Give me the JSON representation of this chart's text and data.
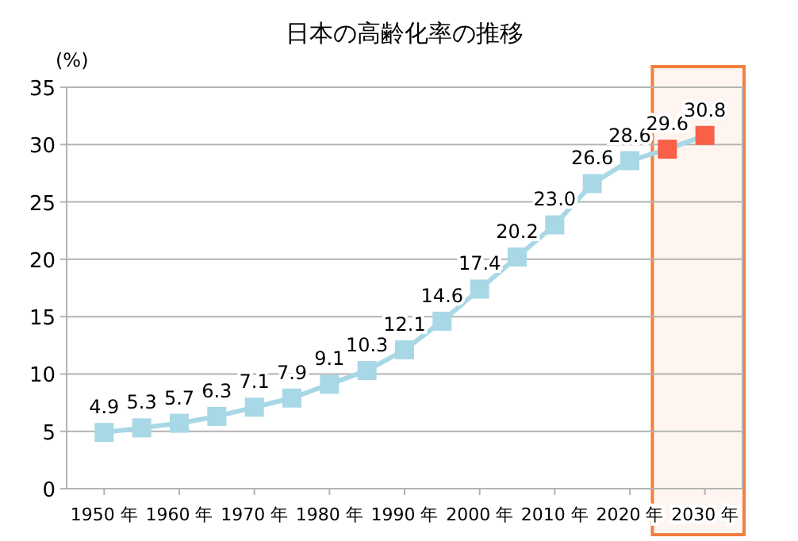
{
  "chart_data": {
    "type": "line",
    "title": "日本の高齢化率の推移",
    "ylabel": "(%)",
    "x": [
      1950,
      1955,
      1960,
      1965,
      1970,
      1975,
      1980,
      1985,
      1990,
      1995,
      2000,
      2005,
      2010,
      2015,
      2020,
      2025,
      2030
    ],
    "series": [
      {
        "color": "#a8d8e6",
        "values": [
          4.9,
          5.3,
          5.7,
          6.3,
          7.1,
          7.9,
          9.1,
          10.3,
          12.1,
          14.6,
          17.4,
          20.2,
          23.0,
          26.6,
          28.6,
          29.6,
          30.8
        ],
        "colors": [
          "#a8d8e6",
          "#a8d8e6",
          "#a8d8e6",
          "#a8d8e6",
          "#a8d8e6",
          "#a8d8e6",
          "#a8d8e6",
          "#a8d8e6",
          "#a8d8e6",
          "#a8d8e6",
          "#a8d8e6",
          "#a8d8e6",
          "#a8d8e6",
          "#a8d8e6",
          "#a8d8e6",
          "#f96048",
          "#f96048"
        ],
        "value_labels": [
          "4.9",
          "5.3",
          "5.7",
          "6.3",
          "7.1",
          "7.9",
          "9.1",
          "10.3",
          "12.1",
          "14.6",
          "17.4",
          "20.2",
          "23.0",
          "26.6",
          "28.6",
          "29.6",
          "30.8"
        ]
      }
    ],
    "xlim": [
      1945,
      2035
    ],
    "xticks": [
      {
        "value": 1950,
        "label": "1950 年"
      },
      {
        "value": 1960,
        "label": "1960 年"
      },
      {
        "value": 1970,
        "label": "1970 年"
      },
      {
        "value": 1980,
        "label": "1980 年"
      },
      {
        "value": 1990,
        "label": "1990 年"
      },
      {
        "value": 2000,
        "label": "2000 年"
      },
      {
        "value": 2010,
        "label": "2010 年"
      },
      {
        "value": 2020,
        "label": "2020 年"
      },
      {
        "value": 2030,
        "label": "2030 年"
      }
    ],
    "ylim": [
      0,
      35
    ],
    "yticks": [
      0,
      5,
      10,
      15,
      20,
      25,
      30,
      35
    ],
    "grid": "y",
    "marker": "square",
    "bands": [
      {
        "axis": "x",
        "from": 2023,
        "to": 2035,
        "color": "#f08040"
      }
    ]
  }
}
